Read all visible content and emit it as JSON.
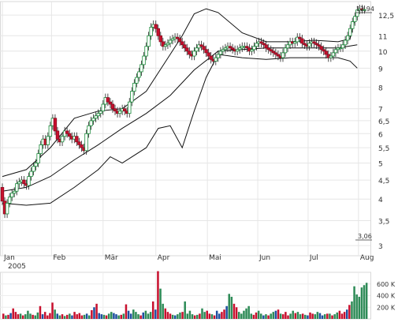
{
  "chart_data": [
    {
      "type": "candlestick",
      "title": "",
      "xlabel": "",
      "ylabel": "",
      "scale": "log",
      "ylim": [
        2.9,
        13.2
      ],
      "yticks": [
        3,
        3.5,
        4,
        4.5,
        5,
        5.5,
        6,
        6.5,
        7,
        8,
        9,
        10,
        11,
        12.5
      ],
      "ytick_labels": [
        "3",
        "3,5",
        "4",
        "4,5",
        "5",
        "5,5",
        "6",
        "6,5",
        "7",
        "8",
        "9",
        "10",
        "11",
        "12,5"
      ],
      "xticks": [
        {
          "label": "Jan",
          "day": 0
        },
        {
          "label": "Feb",
          "day": 41
        },
        {
          "label": "Mär",
          "day": 84
        },
        {
          "label": "Apr",
          "day": 128
        },
        {
          "label": "Mai",
          "day": 171
        },
        {
          "label": "Jun",
          "day": 213
        },
        {
          "label": "Jul",
          "day": 255
        },
        {
          "label": "Aug",
          "day": 297
        }
      ],
      "year_label": "2005",
      "grid": true,
      "last_label": "12,94",
      "min_label": "3,06",
      "series": [
        {
          "type": "ohlc",
          "x": [
            0,
            2,
            4,
            6,
            8,
            10,
            12,
            14,
            16,
            18,
            20,
            22,
            24,
            26,
            28,
            30,
            32,
            34,
            36,
            38,
            40,
            42,
            44,
            46,
            48,
            50,
            52,
            54,
            56,
            58,
            60,
            62,
            64,
            66,
            68,
            70,
            72,
            74,
            76,
            78,
            80,
            82,
            84,
            86,
            88,
            90,
            92,
            94,
            96,
            98,
            100,
            102,
            104,
            106,
            108,
            110,
            112,
            114,
            116,
            118,
            120,
            122,
            124,
            126,
            128,
            130,
            132,
            134,
            136,
            138,
            140,
            142,
            144,
            146,
            148,
            150,
            152,
            154,
            156,
            158,
            160,
            162,
            164,
            166,
            168,
            170,
            172,
            174,
            176,
            178,
            180,
            182,
            184,
            186,
            188,
            190,
            192,
            194,
            196,
            198,
            200,
            202,
            204,
            206,
            208,
            210,
            212,
            214,
            216,
            218,
            220,
            222,
            224,
            226,
            228,
            230,
            232,
            234,
            236,
            238,
            240,
            242,
            244,
            246,
            248,
            250,
            252,
            254,
            256,
            258,
            260,
            262,
            264,
            266,
            268,
            270,
            272,
            274,
            276,
            278,
            280,
            282,
            284,
            286,
            288,
            290,
            292,
            294,
            296,
            298,
            300,
            302
          ],
          "open": [
            4.3,
            3.95,
            3.65,
            3.9,
            4.05,
            4.15,
            4.2,
            4.4,
            4.45,
            4.5,
            4.4,
            4.35,
            4.6,
            4.75,
            4.9,
            5.0,
            5.3,
            5.6,
            5.8,
            5.6,
            5.9,
            6.3,
            6.6,
            6.1,
            5.8,
            5.7,
            5.9,
            6.1,
            6.0,
            5.9,
            5.8,
            5.9,
            5.7,
            5.6,
            5.5,
            5.4,
            6.0,
            6.3,
            6.5,
            6.6,
            6.7,
            6.8,
            6.9,
            7.2,
            7.5,
            7.3,
            7.2,
            7.0,
            6.9,
            6.8,
            6.9,
            7.0,
            6.9,
            6.8,
            7.3,
            7.8,
            8.2,
            8.5,
            8.8,
            9.2,
            9.7,
            10.3,
            11.0,
            11.6,
            11.8,
            11.5,
            11.0,
            10.6,
            10.3,
            10.4,
            10.5,
            10.7,
            10.8,
            10.9,
            10.8,
            10.6,
            10.4,
            10.2,
            10.0,
            9.8,
            9.7,
            10.0,
            10.2,
            10.4,
            10.3,
            10.1,
            9.9,
            9.7,
            9.5,
            9.4,
            9.6,
            9.8,
            10.0,
            10.1,
            10.2,
            10.3,
            10.2,
            10.1,
            10.0,
            10.1,
            10.2,
            10.3,
            10.3,
            10.2,
            10.0,
            10.1,
            10.3,
            10.5,
            10.6,
            10.5,
            10.4,
            10.2,
            10.1,
            10.0,
            9.9,
            9.8,
            9.7,
            9.6,
            9.9,
            10.2,
            10.4,
            10.6,
            10.5,
            10.6,
            10.9,
            10.8,
            10.5,
            10.4,
            10.3,
            10.5,
            10.6,
            10.5,
            10.4,
            10.3,
            10.1,
            10.0,
            9.8,
            9.6,
            9.7,
            9.9,
            10.1,
            10.2,
            10.2,
            10.4,
            10.7,
            11.0,
            11.5,
            12.0,
            12.4,
            12.9,
            13.0,
            12.94
          ],
          "close": [
            3.95,
            3.65,
            3.9,
            4.05,
            4.15,
            4.2,
            4.4,
            4.45,
            4.5,
            4.4,
            4.35,
            4.6,
            4.75,
            4.9,
            5.0,
            5.3,
            5.6,
            5.8,
            5.6,
            5.9,
            6.3,
            6.6,
            6.1,
            5.8,
            5.7,
            5.9,
            6.1,
            6.0,
            5.9,
            5.8,
            5.9,
            5.7,
            5.6,
            5.5,
            5.4,
            6.0,
            6.3,
            6.5,
            6.6,
            6.7,
            6.8,
            6.9,
            7.2,
            7.5,
            7.3,
            7.2,
            7.0,
            6.9,
            6.8,
            6.9,
            7.0,
            6.9,
            6.8,
            7.3,
            7.8,
            8.2,
            8.5,
            8.8,
            9.2,
            9.7,
            10.3,
            11.0,
            11.6,
            11.8,
            11.5,
            11.0,
            10.6,
            10.3,
            10.4,
            10.5,
            10.7,
            10.8,
            10.9,
            10.8,
            10.6,
            10.4,
            10.2,
            10.0,
            9.8,
            9.7,
            10.0,
            10.2,
            10.4,
            10.3,
            10.1,
            9.9,
            9.7,
            9.5,
            9.4,
            9.6,
            9.8,
            10.0,
            10.1,
            10.2,
            10.3,
            10.2,
            10.1,
            10.0,
            10.1,
            10.2,
            10.3,
            10.3,
            10.2,
            10.0,
            10.1,
            10.3,
            10.5,
            10.6,
            10.5,
            10.4,
            10.2,
            10.1,
            10.0,
            9.9,
            9.8,
            9.7,
            9.6,
            9.9,
            10.2,
            10.4,
            10.6,
            10.5,
            10.6,
            10.9,
            10.8,
            10.5,
            10.4,
            10.3,
            10.5,
            10.6,
            10.5,
            10.4,
            10.3,
            10.1,
            10.0,
            9.8,
            9.6,
            9.7,
            9.9,
            10.1,
            10.2,
            10.2,
            10.4,
            10.7,
            11.0,
            11.5,
            12.0,
            12.4,
            12.9,
            13.0,
            12.94,
            12.94
          ]
        },
        {
          "name": "",
          "type": "line",
          "x": [
            0,
            20,
            40,
            60,
            80,
            100,
            120,
            140,
            160,
            180,
            200,
            220,
            240,
            260,
            280,
            296
          ],
          "values": [
            4.2,
            4.3,
            4.6,
            5.1,
            5.6,
            6.2,
            6.8,
            7.6,
            8.9,
            10.0,
            10.1,
            10.2,
            10.2,
            10.2,
            10.2,
            10.4
          ]
        },
        {
          "name": "",
          "type": "line",
          "x": [
            0,
            20,
            40,
            60,
            80,
            100,
            120,
            140,
            150,
            160,
            170,
            180,
            200,
            220,
            240,
            260,
            280,
            290,
            296
          ],
          "values": [
            4.6,
            4.8,
            5.5,
            6.6,
            6.9,
            7.0,
            7.8,
            9.8,
            11.0,
            12.6,
            13.0,
            12.7,
            11.2,
            10.6,
            10.6,
            10.7,
            10.6,
            10.8,
            12.9
          ]
        },
        {
          "name": "",
          "type": "line",
          "x": [
            0,
            20,
            40,
            60,
            80,
            90,
            100,
            120,
            130,
            140,
            150,
            160,
            170,
            180,
            200,
            220,
            240,
            260,
            280,
            290,
            296
          ],
          "values": [
            3.9,
            3.85,
            3.9,
            4.3,
            4.8,
            5.2,
            5.0,
            5.5,
            6.2,
            6.3,
            5.5,
            6.9,
            8.5,
            9.8,
            9.6,
            9.5,
            9.6,
            9.6,
            9.6,
            9.4,
            9.0
          ]
        }
      ]
    },
    {
      "type": "bar",
      "title": "",
      "ylim": [
        0,
        800
      ],
      "yticks": [
        200,
        400,
        600
      ],
      "ytick_labels": [
        "200 K",
        "400 K",
        "600 K"
      ],
      "series": [
        {
          "name": "",
          "values": [
            90,
            60,
            70,
            100,
            180,
            120,
            80,
            90,
            60,
            80,
            140,
            90,
            70,
            60,
            110,
            220,
            80,
            120,
            60,
            100,
            280,
            160,
            90,
            60,
            80,
            50,
            70,
            90,
            60,
            120,
            80,
            100,
            60,
            70,
            90,
            60,
            150,
            200,
            260,
            100,
            80,
            70,
            60,
            90,
            120,
            100,
            80,
            60,
            70,
            90,
            250,
            140,
            90,
            160,
            120,
            80,
            60,
            110,
            140,
            90,
            120,
            300,
            160,
            820,
            520,
            260,
            180,
            120,
            90,
            70,
            60,
            80,
            110,
            120,
            300,
            90,
            140,
            80,
            60,
            70,
            90,
            180,
            120,
            140,
            90,
            80,
            60,
            140,
            90,
            120,
            160,
            220,
            430,
            380,
            260,
            200,
            120,
            90,
            140,
            180,
            220,
            90,
            70,
            110,
            140,
            90,
            60,
            80,
            60,
            90,
            120,
            140,
            160,
            90,
            80,
            120,
            60,
            90,
            140,
            100,
            120,
            80,
            90,
            70,
            60,
            110,
            90,
            80,
            120,
            100,
            60,
            80,
            90,
            90,
            60,
            80,
            110,
            140,
            90,
            120,
            160,
            240,
            300,
            560,
            420,
            380,
            540,
            580,
            620
          ]
        }
      ]
    }
  ]
}
